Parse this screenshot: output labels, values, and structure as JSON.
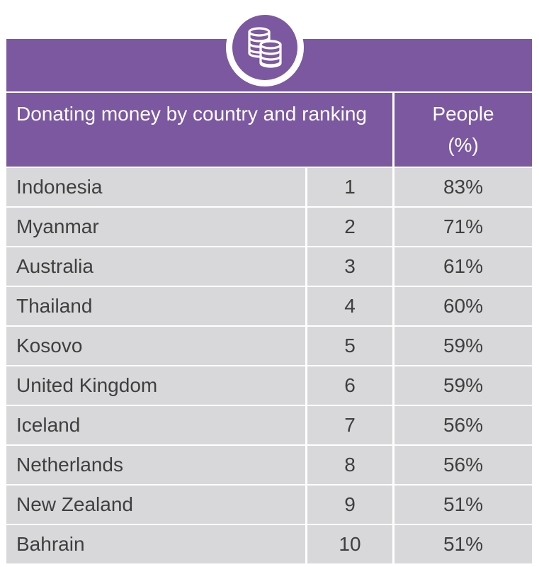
{
  "header": {
    "icon": "coins-icon",
    "title": "Donating money by country and ranking",
    "people_label": "People",
    "people_unit": "(%)"
  },
  "colors": {
    "brand_purple": "#7b58a0",
    "row_gray": "#d8d8da",
    "text_dark": "#3f3f3f"
  },
  "rows": [
    {
      "country": "Indonesia",
      "rank": "1",
      "people": "83%"
    },
    {
      "country": "Myanmar",
      "rank": "2",
      "people": "71%"
    },
    {
      "country": "Australia",
      "rank": "3",
      "people": "61%"
    },
    {
      "country": "Thailand",
      "rank": "4",
      "people": "60%"
    },
    {
      "country": "Kosovo",
      "rank": "5",
      "people": "59%"
    },
    {
      "country": "United Kingdom",
      "rank": "6",
      "people": "59%"
    },
    {
      "country": "Iceland",
      "rank": "7",
      "people": "56%"
    },
    {
      "country": "Netherlands",
      "rank": "8",
      "people": "56%"
    },
    {
      "country": "New Zealand",
      "rank": "9",
      "people": "51%"
    },
    {
      "country": "Bahrain",
      "rank": "10",
      "people": "51%"
    }
  ]
}
